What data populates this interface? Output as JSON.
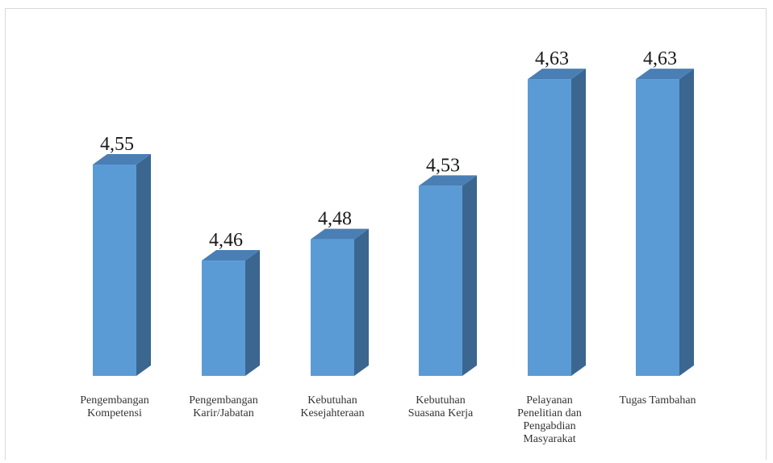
{
  "chart_data": {
    "type": "bar",
    "categories": [
      [
        "Pengembangan",
        "Kompetensi"
      ],
      [
        "Pengembangan",
        "Karir/Jabatan"
      ],
      [
        "Kebutuhan",
        "Kesejahteraan"
      ],
      [
        "Kebutuhan",
        "Suasana Kerja"
      ],
      [
        "Pelayanan",
        "Penelitian dan",
        "Pengabdian",
        "Masyarakat"
      ],
      [
        "Tugas Tambahan"
      ]
    ],
    "values": [
      4.55,
      4.46,
      4.48,
      4.53,
      4.63,
      4.63
    ],
    "value_labels": [
      "4,55",
      "4,46",
      "4,48",
      "4,53",
      "4,63",
      "4,63"
    ],
    "title": "",
    "xlabel": "",
    "ylabel": "",
    "style": "3d-column",
    "grid": false,
    "legend": "none",
    "colors": {
      "front": "#5b9bd5",
      "side": "#3a6690",
      "top": "#4a7fb5"
    }
  }
}
